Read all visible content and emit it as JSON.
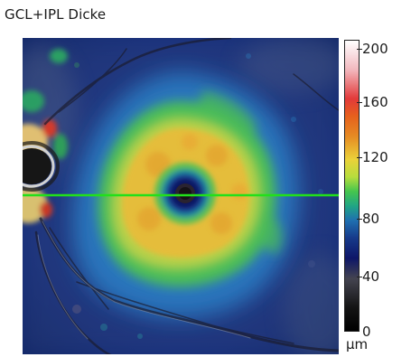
{
  "title": "GCL+IPL Dicke",
  "map": {
    "scan_line_color": "#22e01a"
  },
  "colorbar": {
    "ticks": [
      "200",
      "160",
      "120",
      "80",
      "40",
      "0"
    ],
    "unit": "µm"
  }
}
